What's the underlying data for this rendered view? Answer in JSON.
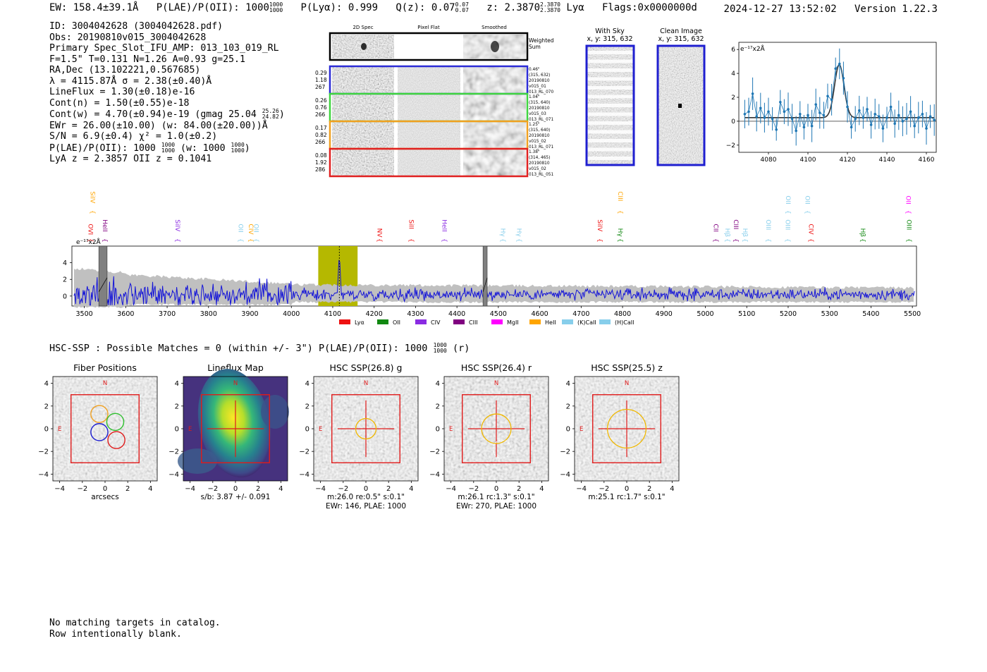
{
  "header": {
    "ew": "EW: 158.4±39.1Å",
    "plae_label": "P(LAE)/P(OII): 1000",
    "plae_sup": "1000",
    "plae_sub": "1000",
    "plya": "P(Lyα): 0.999",
    "qz_label": "Q(z): 0.07",
    "qz_sup": "0.07",
    "qz_sub": "0.07",
    "z_label": "z: 2.3870",
    "z_sup": "2.3870",
    "z_sub": "2.3870",
    "line": "Lyα",
    "flags": "Flags:0x0000000d",
    "timestamp": "2024-12-27 13:52:02",
    "version": "Version 1.22.3"
  },
  "info": {
    "id": "ID: 3004042628 (3004042628.pdf)",
    "obs": "Obs: 20190810v015_3004042628",
    "slot": "Primary Spec_Slot_IFU_AMP: 013_103_019_RL",
    "fit": "F=1.5\"  T=0.131  N=1.26  A=0.93  g=25.1",
    "radec": "RA,Dec (13.102221,0.567685)",
    "lambda": "λ = 4115.87Å   σ = 2.38(±0.40)Å",
    "lineflux": "LineFlux = 1.30(±0.18)e-16",
    "contn": "Cont(n) = 1.50(±0.55)e-18",
    "contw": "Cont(w) = 4.70(±0.94)e-19 (gmag 25.04",
    "contw_sup": "25.26",
    "contw_sub": "24.82",
    "contw_end": ")",
    "ewr": "EWr = 26.00(±10.00) (w: 84.00(±20.00))Å",
    "sn": "S/N = 6.9(±0.4)  χ² = 1.0(±0.2)",
    "plae": "P(LAE)/P(OII): 1000",
    "plae_sup": "1000",
    "plae_sub": "1000",
    "plae_w": "(w: 1000",
    "plae_w_sup": "1000",
    "plae_w_sub": "1000",
    "plae_end": ")",
    "lyaz": "LyA z = 2.3857   OII z = 0.1041"
  },
  "cutouts": {
    "col_labels": [
      "2D Spec",
      "Pixel Flat",
      "Smoothed"
    ],
    "weighted_label": "Weighted Sum",
    "rows": [
      {
        "left": [
          "0.29",
          "1.18",
          "267"
        ],
        "right": [
          "0.46\"",
          "(315, 632)",
          "20190810",
          "v015_01",
          "013_RL_070"
        ],
        "color": "#2b2bd6"
      },
      {
        "left": [
          "0.26",
          "0.76",
          "266"
        ],
        "right": [
          "1.04\"",
          "(315, 640)",
          "20190810",
          "v015_03",
          "013_RL_071"
        ],
        "color": "#3fd43f"
      },
      {
        "left": [
          "0.17",
          "0.82",
          "266"
        ],
        "right": [
          "1.25\"",
          "(315, 640)",
          "20190810",
          "v015_02",
          "013_RL_071"
        ],
        "color": "#f0a020"
      },
      {
        "left": [
          "0.08",
          "1.92",
          "286"
        ],
        "right": [
          "1.38\"",
          "(314, 465)",
          "20190810",
          "v015_02",
          "013_RL_051"
        ],
        "color": "#e02020"
      }
    ]
  },
  "sky": {
    "with_sky_title": "With Sky",
    "with_sky_xy": "x, y: 315, 632",
    "clean_title": "Clean Image",
    "clean_xy": "x, y: 315, 632"
  },
  "zoom_plot": {
    "unit_label": "e⁻¹⁷x2Å",
    "x_ticks": [
      "4080",
      "4100",
      "4120",
      "4140",
      "4160"
    ],
    "y_ticks": [
      "6",
      "4",
      "2",
      "0",
      "−2"
    ]
  },
  "full_spectrum": {
    "unit_label": "e⁻¹⁷x2Å",
    "x_ticks": [
      "3500",
      "3600",
      "3700",
      "3800",
      "3900",
      "4000",
      "4100",
      "4200",
      "4300",
      "4400",
      "4500",
      "4600",
      "4700",
      "4800",
      "4900",
      "5000",
      "5100",
      "5200",
      "5300",
      "5400",
      "5500"
    ],
    "y_ticks": [
      "4",
      "2",
      "0"
    ],
    "legend": [
      {
        "label": "Lyα",
        "color": "#ee1111"
      },
      {
        "label": "OII",
        "color": "#118811"
      },
      {
        "label": "CIV",
        "color": "#8a2be2"
      },
      {
        "label": "CIII",
        "color": "#800080"
      },
      {
        "label": "MgII",
        "color": "#ff00ff"
      },
      {
        "label": "HeII",
        "color": "#ffa500"
      },
      {
        "label": "(K)CaII",
        "color": "#87ceeb"
      },
      {
        "label": "(H)CaII",
        "color": "#87ceeb"
      }
    ],
    "line_labels": [
      {
        "text": "SiIV",
        "color": "#ffa500",
        "wave": 3510,
        "row": "top"
      },
      {
        "text": "OVI",
        "color": "#ee1111",
        "wave": 3505,
        "row": "low"
      },
      {
        "text": "HeII",
        "color": "#800080",
        "wave": 3540,
        "row": "low"
      },
      {
        "text": "SiIV",
        "color": "#8a2be2",
        "wave": 3715,
        "row": "low"
      },
      {
        "text": "OII",
        "color": "#87ceeb",
        "wave": 3868,
        "row": "low"
      },
      {
        "text": "CIV",
        "color": "#ffa500",
        "wave": 3892,
        "row": "low"
      },
      {
        "text": "OII",
        "color": "#87ceeb",
        "wave": 3905,
        "row": "low"
      },
      {
        "text": "NV",
        "color": "#ee1111",
        "wave": 4203,
        "row": "low"
      },
      {
        "text": "SiII",
        "color": "#ee1111",
        "wave": 4280,
        "row": "low"
      },
      {
        "text": "HeII",
        "color": "#8a2be2",
        "wave": 4360,
        "row": "low"
      },
      {
        "text": "Hγ",
        "color": "#87ceeb",
        "wave": 4501,
        "row": "low"
      },
      {
        "text": "Hγ",
        "color": "#87ceeb",
        "wave": 4540,
        "row": "low"
      },
      {
        "text": "SiIV",
        "color": "#ee1111",
        "wave": 4735,
        "row": "low"
      },
      {
        "text": "CIII",
        "color": "#ffa500",
        "wave": 4785,
        "row": "top"
      },
      {
        "text": "Hγ",
        "color": "#118811",
        "wave": 4785,
        "row": "low"
      },
      {
        "text": "CII",
        "color": "#800080",
        "wave": 5015,
        "row": "low"
      },
      {
        "text": "Hβ",
        "color": "#87ceeb",
        "wave": 5043,
        "row": "low"
      },
      {
        "text": "CIII",
        "color": "#800080",
        "wave": 5064,
        "row": "low"
      },
      {
        "text": "Hβ",
        "color": "#87ceeb",
        "wave": 5086,
        "row": "low"
      },
      {
        "text": "OIII",
        "color": "#87ceeb",
        "wave": 5142,
        "row": "low"
      },
      {
        "text": "OII",
        "color": "#87ceeb",
        "wave": 5190,
        "row": "top"
      },
      {
        "text": "OIII",
        "color": "#87ceeb",
        "wave": 5189,
        "row": "low"
      },
      {
        "text": "OII",
        "color": "#87ceeb",
        "wave": 5237,
        "row": "top"
      },
      {
        "text": "CIV",
        "color": "#ee1111",
        "wave": 5245,
        "row": "low"
      },
      {
        "text": "Hβ",
        "color": "#118811",
        "wave": 5370,
        "row": "low"
      },
      {
        "text": "OII",
        "color": "#ff00ff",
        "wave": 5480,
        "row": "top"
      },
      {
        "text": "OIII",
        "color": "#118811",
        "wave": 5482,
        "row": "low"
      }
    ]
  },
  "hsc": {
    "summary": "HSC-SSP : Possible Matches = 0 (within +/- 3\")  P(LAE)/P(OII): 1000",
    "summary_sup": "1000",
    "summary_sub": "1000",
    "summary_end": "(r)",
    "ticks": [
      "4",
      "2",
      "0",
      "−2",
      "−4"
    ],
    "x_ticks": [
      "−4",
      "−2",
      "0",
      "2",
      "4"
    ],
    "panels": [
      {
        "title": "Fiber Positions",
        "caption1": "arcsecs",
        "caption2": "",
        "kind": "fiber"
      },
      {
        "title": "Lineflux Map",
        "caption1": "s/b: 3.87 +/- 0.091",
        "caption2": "",
        "kind": "flux"
      },
      {
        "title": "HSC SSP(26.8) g",
        "caption1": "m:26.0  re:0.5\"  s:0.1\"",
        "caption2": "EWr: 146, PLAE: 1000",
        "kind": "g"
      },
      {
        "title": "HSC SSP(26.4) r",
        "caption1": "m:26.1 rc:1.3\"  s:0.1\"",
        "caption2": "EWr: 270, PLAE: 1000",
        "kind": "r"
      },
      {
        "title": "HSC SSP(25.5) z",
        "caption1": "m:25.1 rc:1.7\"  s:0.1\"",
        "caption2": "",
        "kind": "z"
      }
    ],
    "compass_n": "N",
    "compass_e": "E"
  },
  "footer": {
    "line1": "No matching targets in catalog.",
    "line2": "Row intentionally blank."
  },
  "chart_data": [
    {
      "type": "line",
      "title": "",
      "xlabel": "",
      "ylabel": "e-17 x2Å",
      "xlim": [
        4065,
        4165
      ],
      "ylim": [
        -2.6,
        6.6
      ],
      "x": [
        4068,
        4070,
        4072,
        4074,
        4076,
        4078,
        4080,
        4082,
        4084,
        4086,
        4088,
        4090,
        4092,
        4094,
        4096,
        4098,
        4100,
        4102,
        4104,
        4106,
        4108,
        4110,
        4112,
        4114,
        4116,
        4118,
        4120,
        4122,
        4124,
        4126,
        4128,
        4130,
        4132,
        4134,
        4136,
        4138,
        4140,
        4142,
        4144,
        4146,
        4148,
        4150,
        4152,
        4154,
        4156,
        4158,
        4160,
        4162,
        4164
      ],
      "y": [
        0.6,
        0.8,
        2.3,
        0.4,
        1.1,
        0.3,
        0.8,
        0.2,
        -0.7,
        1.6,
        0.8,
        1.0,
        0.2,
        -0.8,
        0.6,
        -0.5,
        0.5,
        -0.4,
        1.4,
        0.7,
        0.5,
        2.1,
        1.8,
        4.4,
        4.8,
        3.6,
        1.2,
        -0.5,
        0.2,
        0.9,
        0.3,
        1.0,
        -0.3,
        0.6,
        0.4,
        -0.6,
        0.3,
        1.2,
        -0.2,
        0.5,
        0.0,
        0.2,
        0.8,
        -0.4,
        0.3,
        0.6,
        -0.6,
        0.4,
        0.1
      ],
      "fit": {
        "center": 4115.87,
        "sigma": 2.38,
        "amplitude": 4.45,
        "continuum": 0.3
      }
    },
    {
      "type": "line",
      "title": "",
      "xlabel": "",
      "ylabel": "e-17 x2Å",
      "xlim": [
        3470,
        5510
      ],
      "ylim": [
        -1.2,
        6.0
      ],
      "emission_line": 4115.87,
      "highlight": [
        4065,
        4160
      ],
      "masked": [
        [
          3535,
          3555
        ],
        [
          4463,
          4473
        ]
      ]
    }
  ]
}
